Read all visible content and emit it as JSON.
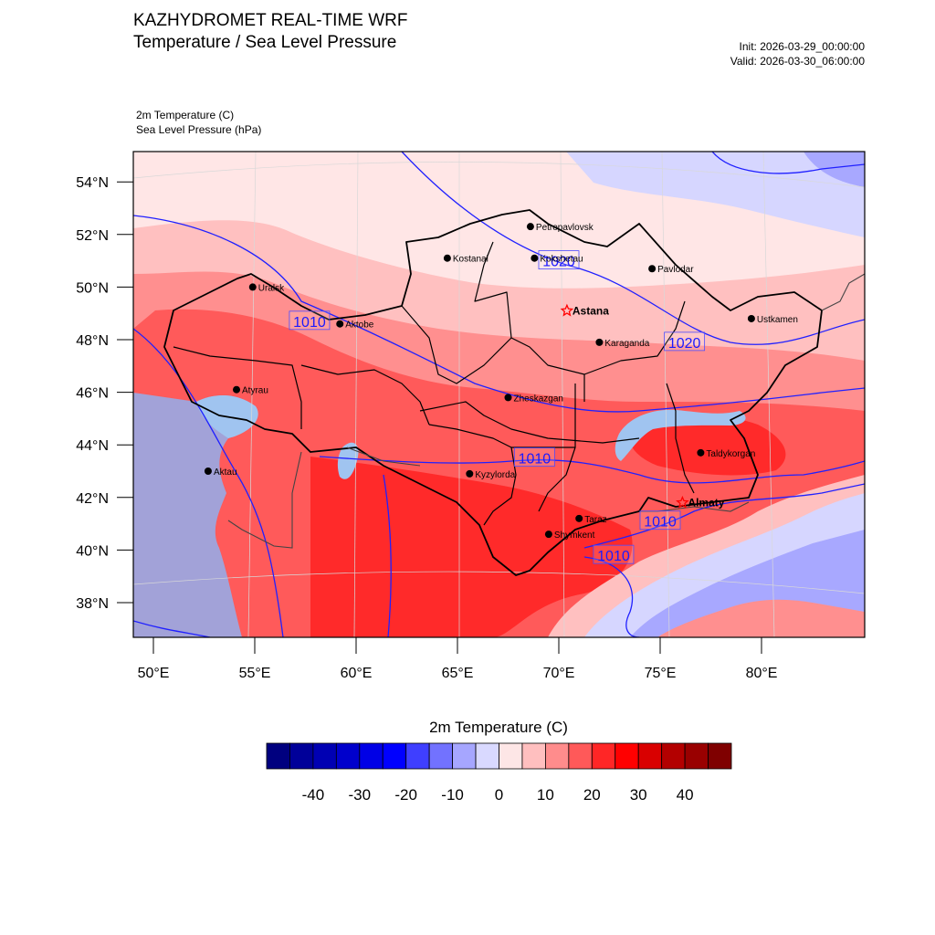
{
  "header": {
    "title_line1": "KAZHYDROMET REAL-TIME WRF",
    "title_line2": "Temperature / Sea Level Pressure",
    "init": "Init: 2026-03-29_00:00:00",
    "valid": "Valid: 2026-03-30_06:00:00",
    "field1": "2m Temperature   (C)",
    "field2": "Sea Level Pressure   (hPa)"
  },
  "map": {
    "lat_ticks": [
      "54°N",
      "52°N",
      "50°N",
      "48°N",
      "46°N",
      "44°N",
      "42°N",
      "40°N",
      "38°N"
    ],
    "lon_ticks": [
      "50°E",
      "55°E",
      "60°E",
      "65°E",
      "70°E",
      "75°E",
      "80°E"
    ],
    "lat_values": [
      54,
      52,
      50,
      48,
      46,
      44,
      42,
      40,
      38
    ],
    "lon_values": [
      50,
      55,
      60,
      65,
      70,
      75,
      80
    ],
    "cities": [
      {
        "name": "Petropavlovsk",
        "lon": 68.6,
        "lat": 52.3,
        "capital": false
      },
      {
        "name": "Kostanai",
        "lon": 64.5,
        "lat": 51.1,
        "capital": false
      },
      {
        "name": "Kokshetau",
        "lon": 68.8,
        "lat": 51.1,
        "capital": false
      },
      {
        "name": "Pavlodar",
        "lon": 74.6,
        "lat": 50.7,
        "capital": false
      },
      {
        "name": "Uralsk",
        "lon": 54.9,
        "lat": 50.0,
        "capital": false
      },
      {
        "name": "Aktobe",
        "lon": 59.2,
        "lat": 48.6,
        "capital": false
      },
      {
        "name": "Astana",
        "lon": 70.4,
        "lat": 49.1,
        "capital": true
      },
      {
        "name": "Ustkamen",
        "lon": 79.5,
        "lat": 48.8,
        "capital": false
      },
      {
        "name": "Karaganda",
        "lon": 72.0,
        "lat": 47.9,
        "capital": false
      },
      {
        "name": "Atyrau",
        "lon": 54.1,
        "lat": 46.1,
        "capital": false
      },
      {
        "name": "Zheskazgan",
        "lon": 67.5,
        "lat": 45.8,
        "capital": false
      },
      {
        "name": "Taldykorgan",
        "lon": 77.0,
        "lat": 43.7,
        "capital": false
      },
      {
        "name": "Kyzylorda",
        "lon": 65.6,
        "lat": 42.9,
        "capital": false
      },
      {
        "name": "Aktau",
        "lon": 52.7,
        "lat": 43.0,
        "capital": false
      },
      {
        "name": "Almaty",
        "lon": 76.1,
        "lat": 41.8,
        "capital": true
      },
      {
        "name": "Taraz",
        "lon": 71.0,
        "lat": 41.2,
        "capital": false
      },
      {
        "name": "Shymkent",
        "lon": 69.5,
        "lat": 40.6,
        "capital": false
      }
    ],
    "isobar_labels": [
      {
        "text": "1010",
        "lon": 57.7,
        "lat": 48.7
      },
      {
        "text": "1020",
        "lon": 70.0,
        "lat": 51.0
      },
      {
        "text": "1020",
        "lon": 76.2,
        "lat": 47.9
      },
      {
        "text": "1010",
        "lon": 68.8,
        "lat": 43.5
      },
      {
        "text": "1010",
        "lon": 75.0,
        "lat": 41.1
      },
      {
        "text": "1010",
        "lon": 72.7,
        "lat": 39.8
      }
    ],
    "colors": {
      "land_warm": "#ff5a5a",
      "land_mild": "#ff8f8f",
      "land_pink": "#ffc0c0",
      "land_pale": "#ffe6e6",
      "land_hot": "#ff2a2a",
      "land_cool": "#d6d6ff",
      "land_cold": "#a8a8ff",
      "sea": "#a2a2d8",
      "lake": "#a0c4f0",
      "isobar": "#2020ff",
      "border": "#000000"
    }
  },
  "colorbar": {
    "title": "2m Temperature  (C)",
    "labels": [
      "-40",
      "-30",
      "-20",
      "-10",
      "0",
      "10",
      "20",
      "30",
      "40"
    ],
    "label_values": [
      -40,
      -30,
      -20,
      -10,
      0,
      10,
      20,
      30,
      40
    ],
    "min": -50,
    "max": 50,
    "colors": [
      "#00007f",
      "#000099",
      "#0000b3",
      "#0000cc",
      "#0000e6",
      "#0000ff",
      "#3f3fff",
      "#7272ff",
      "#a6a6ff",
      "#d9d9ff",
      "#fde6e6",
      "#ffbfbf",
      "#ff8c8c",
      "#ff5959",
      "#ff2626",
      "#ff0000",
      "#d90000",
      "#b30000",
      "#990000",
      "#7f0000"
    ]
  }
}
